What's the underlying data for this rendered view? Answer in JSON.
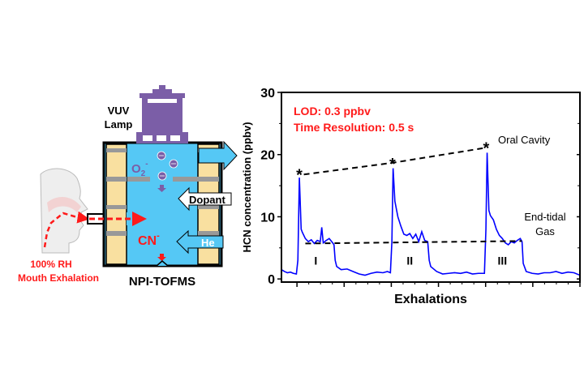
{
  "schematic": {
    "lamp_label_line1": "VUV",
    "lamp_label_line2": "Lamp",
    "o2_label": "O",
    "o2_sub": "2",
    "o2_sup": "-",
    "dopant_label": "Dopant",
    "he_label": "He",
    "cn_label": "CN",
    "cn_sup": "-",
    "instrument_label": "NPI-TOFMS",
    "rh_label": "100% RH",
    "exhalation_label": "Mouth Exhalation",
    "colors": {
      "chamber": "#55c8f5",
      "lamp": "#7b5ea7",
      "electrode": "#f9e0a0",
      "breath": "#ff1a1a"
    }
  },
  "chart_data": {
    "type": "line",
    "title": "",
    "xlabel": "Exhalations",
    "ylabel": "HCN concentration (ppbv)",
    "xlim": [
      0,
      100
    ],
    "ylim": [
      -0.5,
      30
    ],
    "yticks": [
      0,
      10,
      20,
      30
    ],
    "ytick_labels": [
      "0",
      "10",
      "20",
      "30"
    ],
    "annotations": {
      "lod": "LOD: 0.3 ppbv",
      "time_resolution": "Time Resolution: 0.5 s",
      "oral_cavity": "Oral Cavity",
      "end_tidal_line1": "End-tidal",
      "end_tidal_line2": "Gas",
      "exhalation_labels": [
        "I",
        "II",
        "III"
      ],
      "peak_marker": "*"
    },
    "series": [
      {
        "name": "HCN",
        "color": "#0000ff",
        "x": [
          0,
          1,
          2,
          3,
          4,
          5,
          5.5,
          6,
          6.6,
          7,
          8,
          9,
          10,
          11,
          12,
          13,
          13.5,
          14,
          15,
          16,
          17,
          17.6,
          18,
          18.5,
          20,
          22,
          24,
          26,
          28,
          30,
          32,
          34,
          35.5,
          36.5,
          37,
          37.4,
          38,
          39,
          40,
          41,
          42,
          43,
          44,
          45,
          46,
          47,
          48,
          49,
          49.5,
          50,
          52,
          54,
          56,
          58,
          60,
          62,
          64,
          66,
          68,
          68.5,
          68.9,
          69.5,
          70,
          71,
          72,
          73,
          74,
          75,
          76,
          77,
          78,
          79,
          80,
          80.6,
          81,
          82,
          84,
          86,
          88,
          90,
          92,
          94,
          96,
          98,
          100
        ],
        "y": [
          1.5,
          1.2,
          1.0,
          1.1,
          0.9,
          0.8,
          3,
          16.3,
          8,
          7.5,
          6.5,
          6.0,
          6.3,
          5.7,
          6.2,
          6.0,
          8.3,
          5.8,
          6.2,
          6.5,
          5.9,
          5.5,
          3,
          2,
          1.5,
          1.6,
          1.2,
          0.8,
          0.6,
          0.9,
          1.1,
          1.0,
          1.2,
          1,
          6,
          17.8,
          12.5,
          10,
          8.5,
          7.2,
          7.0,
          7.3,
          6.5,
          7.2,
          6.0,
          7.6,
          6.2,
          6.0,
          3,
          2,
          1.2,
          0.8,
          0.9,
          1.0,
          0.9,
          1.1,
          0.8,
          0.9,
          0.9,
          8,
          20.3,
          11,
          10.2,
          9.5,
          8,
          7,
          6.5,
          5.8,
          5.5,
          6,
          5.8,
          6.2,
          6.5,
          6.0,
          2.5,
          1.2,
          0.9,
          0.8,
          1.0,
          1.0,
          1.2,
          0.9,
          1.1,
          1.0,
          0.6
        ]
      }
    ],
    "trend_lines": [
      {
        "name": "oral-cavity",
        "x": [
          7.5,
          37.5,
          68.5
        ],
        "y": [
          16.8,
          18.7,
          21.1
        ]
      },
      {
        "name": "end-tidal",
        "x": [
          8,
          80.5
        ],
        "y": [
          5.7,
          6.1
        ]
      }
    ],
    "peak_markers": {
      "x": [
        6,
        37.2,
        68.6
      ],
      "y": [
        17,
        18.8,
        21.3
      ]
    },
    "exhalation_label_positions": {
      "x": [
        11.5,
        43,
        74
      ],
      "y": [
        2.3,
        2.3,
        2.3
      ]
    },
    "xticks_major": [
      5.2,
      21,
      36.8,
      52.6,
      68.4,
      84.2,
      100
    ]
  }
}
